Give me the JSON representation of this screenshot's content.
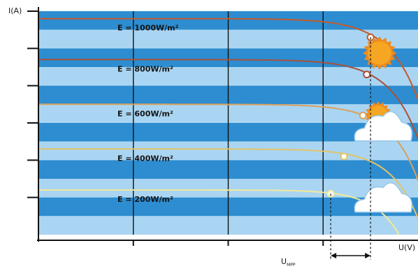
{
  "chart_data": {
    "type": "line",
    "title": "",
    "ylabel": "I(A)",
    "xlabel": "U(V)",
    "xlim": [
      0,
      10
    ],
    "ylim": [
      0,
      6
    ],
    "yticks": [
      1,
      2,
      3,
      4,
      5,
      6
    ],
    "xticks": [
      2.5,
      5,
      7.5,
      10
    ],
    "grid": true,
    "legend": "none",
    "band_colors": {
      "dark": "#2d8dd0",
      "light": "#aad5f2"
    },
    "series": [
      {
        "name": "E = 1000W/m²",
        "isc": 5.8,
        "voc": 10.75,
        "mpp_x": 8.75,
        "mpp_i": 5.3,
        "color": "#c45a2a"
      },
      {
        "name": "E = 800W/m²",
        "isc": 4.7,
        "voc": 10.6,
        "mpp_x": 8.65,
        "mpp_i": 4.3,
        "color": "#a9503a"
      },
      {
        "name": "E = 600W/m²",
        "isc": 3.5,
        "voc": 10.4,
        "mpp_x": 8.55,
        "mpp_i": 3.2,
        "color": "#dba05c"
      },
      {
        "name": "E = 400W/m²",
        "isc": 2.3,
        "voc": 10.15,
        "mpp_x": 8.05,
        "mpp_i": 2.1,
        "color": "#e2c468"
      },
      {
        "name": "E = 200W/m²",
        "isc": 1.2,
        "voc": 9.5,
        "mpp_x": 7.7,
        "mpp_i": 1.1,
        "color": "#f1ea9a"
      }
    ],
    "annotation": {
      "main": "U",
      "sub": "MPP"
    },
    "icons": [
      "sun-icon",
      "sun-behind-cloud-icon",
      "cloud-icon"
    ]
  }
}
